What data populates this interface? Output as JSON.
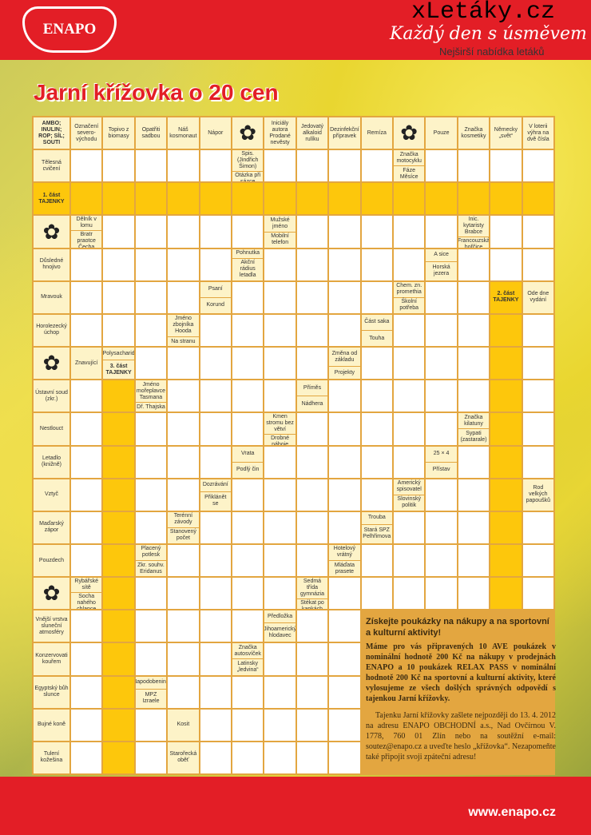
{
  "header": {
    "logo": "ENAPO",
    "slogan": "Každý den s úsměvem",
    "watermark": "xLetáky.cz",
    "watermark_sub": "Nejširší nabídka letáků"
  },
  "title": "Jarní křížovka o 20 cen",
  "grid": [
    [
      [
        "AMBO; INULIN; ROP; SÍL; SOUTI"
      ],
      [
        "Označení severo-východu"
      ],
      [
        "Topivo z biomasy"
      ],
      [
        "Opatřiti sadbou"
      ],
      [
        "Náš kosmonaut"
      ],
      [
        "Nápor"
      ],
      "*",
      [
        "Iniciály autora Prodané nevěsty"
      ],
      [
        "Jedovatý alkaloid rulíku"
      ],
      [
        "Dezinfekční přípravek"
      ],
      [
        "Remíza"
      ],
      "*",
      [
        "Pouze"
      ],
      [
        "Značka kosmetiky"
      ],
      [
        "Německy „svět“"
      ],
      [
        "V loterii výhra na dvě čísla"
      ]
    ],
    [
      [
        "Tělesná cvičení"
      ],
      "_",
      "_",
      "_",
      "_",
      "_",
      [
        "Spis.(Jindřich Šimon)",
        "Otázka při sázce"
      ],
      "_",
      "_",
      "_",
      "_",
      [
        "Značka motocyklu",
        "Fáze Měsíce"
      ],
      "_",
      "_",
      "_",
      "_"
    ],
    [
      [
        "1. část TAJENKY"
      ],
      "#",
      "#",
      "#",
      "#",
      "#",
      "#",
      "#",
      "#",
      "#",
      "#",
      "#",
      "#",
      "#",
      "#",
      "#"
    ],
    [
      "*",
      [
        "Dělník v lomu",
        "Bratr praotce Čecha"
      ],
      "_",
      "_",
      "_",
      "_",
      "_",
      [
        "Mužské jméno",
        "Mobilní telefon"
      ],
      "_",
      "_",
      "_",
      "_",
      "_",
      [
        "Inic. kytaristy Brabce",
        "Francouzská hořčice"
      ],
      "_",
      "_"
    ],
    [
      [
        "Důsledné hnojivo"
      ],
      "_",
      "_",
      "_",
      "_",
      "_",
      [
        "Pohnutka",
        "Akční rádius letadla"
      ],
      "_",
      "_",
      "_",
      "_",
      "_",
      [
        "A sice",
        "Horská jezera"
      ],
      "_",
      "_",
      "_"
    ],
    [
      [
        "Mravouk"
      ],
      "_",
      "_",
      "_",
      "_",
      [
        "Psaní",
        "Korund"
      ],
      "_",
      "_",
      "_",
      "_",
      "_",
      [
        "Chem. zn. promethia",
        "Školní potřeba"
      ],
      "_",
      "_",
      [
        "2. část TAJENKY"
      ],
      [
        "Ode dne vydání"
      ]
    ],
    [
      [
        "Horolezecký úchop"
      ],
      "_",
      "_",
      "_",
      [
        "Jméno zbojníka Hooda",
        "Na stranu"
      ],
      "_",
      "_",
      "_",
      "_",
      "_",
      [
        "Část saka",
        "Touha"
      ],
      "_",
      "_",
      "_",
      "#",
      "_"
    ],
    [
      "*",
      [
        "Znavující"
      ],
      [
        "Polysacharid",
        "3. část TAJENKY"
      ],
      "_",
      "_",
      "_",
      "_",
      "_",
      "_",
      [
        "Změna od základu",
        "Projekty"
      ],
      "_",
      "_",
      "_",
      "_",
      "#",
      "_"
    ],
    [
      [
        "Ústavní soud (zkr.)"
      ],
      "_",
      "#",
      [
        "Jméno mořeplavce Tasmana",
        "Dř. Thajska"
      ],
      "_",
      "_",
      "_",
      "_",
      [
        "Příměs",
        "Nádhera"
      ],
      "_",
      "_",
      "_",
      "_",
      "_",
      "#",
      "_"
    ],
    [
      [
        "Nestlouct"
      ],
      "_",
      "#",
      "_",
      "_",
      "_",
      "_",
      [
        "Kmen stromu bez větví",
        "Drobné náboje"
      ],
      "_",
      "_",
      "_",
      "_",
      "_",
      [
        "Značka kilatuny",
        "Sypati (zastarale)"
      ],
      "#",
      "_"
    ],
    [
      [
        "Letadlo (knižně)"
      ],
      "_",
      "#",
      "_",
      "_",
      "_",
      [
        "Vrata",
        "Podlý čin"
      ],
      "_",
      "_",
      "_",
      "_",
      "_",
      [
        "25 × 4",
        "Přístav"
      ],
      "_",
      "#",
      "_"
    ],
    [
      [
        "Vztyč"
      ],
      "_",
      "#",
      "_",
      "_",
      [
        "Dozrávání",
        "Přiklánět se"
      ],
      "_",
      "_",
      "_",
      "_",
      "_",
      [
        "Americký spisovatel",
        "Slovinský politik"
      ],
      "_",
      "_",
      "#",
      [
        "Rod velkých papoušků"
      ]
    ],
    [
      [
        "Maďarský zápor"
      ],
      "_",
      "#",
      "_",
      [
        "Terénní závody",
        "Stanovený počet"
      ],
      "_",
      "_",
      "_",
      "_",
      "_",
      [
        "Trouba",
        "Stará SPZ Pelhřimova"
      ],
      "_",
      "_",
      "_",
      "#",
      "_"
    ],
    [
      [
        "Pouzdech"
      ],
      "_",
      "#",
      [
        "Placený potlesk",
        "Zkr. souhv. Eridanus"
      ],
      "_",
      "_",
      "_",
      "_",
      "_",
      [
        "Hotelový vrátný",
        "Mláďata prasete"
      ],
      "_",
      "_",
      "_",
      "_",
      "#",
      "_"
    ],
    [
      "*",
      [
        "Rybářské sítě",
        "Socha nahého chlapce"
      ],
      "#",
      "_",
      "_",
      "_",
      "_",
      "_",
      [
        "Sedmá třída gymnázia",
        "Stékat po kapkách"
      ],
      "_",
      "_",
      "_",
      "_",
      "_",
      "#",
      "_"
    ],
    [
      [
        "Vnější vrstva sluneční atmosféry"
      ],
      "_",
      "#",
      "_",
      "_",
      "_",
      "_",
      [
        "Předložka",
        "Jihoamerický hlodavec"
      ],
      "_",
      "_",
      "-",
      "-",
      "-",
      "-",
      "-",
      "-"
    ],
    [
      [
        "Konzervovati kouřem"
      ],
      "_",
      "#",
      "_",
      "_",
      "_",
      [
        "Značka autosvíček",
        "Latinsky „ledvina“"
      ],
      "_",
      "_",
      "_",
      "-",
      "-",
      "-",
      "-",
      "-",
      "-"
    ],
    [
      [
        "Egyptský bůh slunce"
      ],
      "_",
      "#",
      [
        "Napodobenina",
        "MPZ Izraele"
      ],
      "_",
      "_",
      "_",
      "_",
      "_",
      "_",
      "-",
      "-",
      "-",
      "-",
      "-",
      "-"
    ],
    [
      [
        "Bujné koně"
      ],
      "_",
      "#",
      "_",
      [
        "Kosit"
      ],
      "_",
      "_",
      "_",
      "_",
      "_",
      "-",
      "-",
      "-",
      "-",
      "-",
      "-"
    ],
    [
      [
        "Tulení kožešina"
      ],
      "_",
      "#",
      "_",
      [
        "Starořecká oběť"
      ],
      "_",
      "_",
      "_",
      "_",
      "_",
      "-",
      "-",
      "-",
      "-",
      "-",
      "-"
    ]
  ],
  "promo": {
    "heading": "Získejte poukázky na nákupy a na sportovní a kulturní aktivity!",
    "p1": "Máme pro vás připravených 10 AVE poukázek v nominální hodnotě 200 Kč na nákupy v prodejnách ENAPO a 10 poukázek RELAX PASS v nominální hodnotě 200 Kč na sportovní a kulturní aktivity, které vylosujeme ze všech došlých správných odpovědí s tajenkou Jarní křížovky.",
    "p2": "Tajenku Jarní křížovky zašlete nejpozději do 13. 4. 2012 na adresu ENAPO OBCHODNÍ a.s., Nad Ovčírnou V. 1778, 760 01 Zlín nebo na soutěžní e-mail: soutez@enapo.cz a uveďte heslo „křížovka“. Nezapomeňte také připojit svoji zpáteční adresu!"
  },
  "footer": {
    "url": "www.enapo.cz"
  },
  "colors": {
    "red": "#e31e26",
    "yellow": "#fdc70c",
    "clue_bg": "#fdf3c8",
    "grid_line": "#e3a640"
  }
}
